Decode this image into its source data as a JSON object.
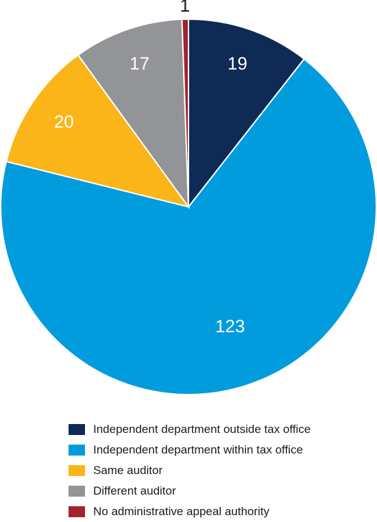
{
  "chart_data": {
    "type": "pie",
    "title": "",
    "start_angle": "12 o'clock",
    "direction": "clockwise",
    "slices": [
      {
        "name": "Independent department outside tax office",
        "value": 19,
        "color": "#0e2a55"
      },
      {
        "name": "Independent department within tax office",
        "value": 123,
        "color": "#009cde"
      },
      {
        "name": "Same auditor",
        "value": 20,
        "color": "#fbb519"
      },
      {
        "name": "Different auditor",
        "value": 17,
        "color": "#929497"
      },
      {
        "name": "No administrative appeal authority",
        "value": 1,
        "color": "#a3232f"
      }
    ],
    "legend_position": "bottom"
  }
}
